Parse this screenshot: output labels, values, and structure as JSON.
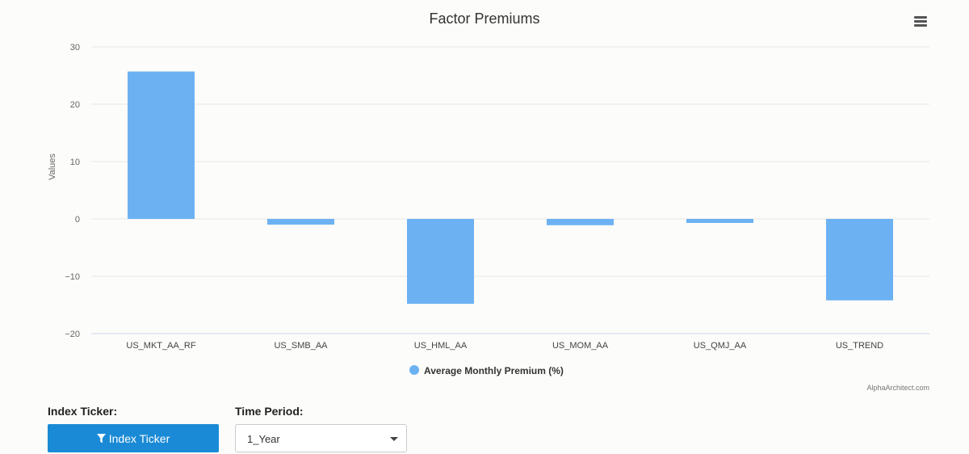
{
  "chart_data": {
    "type": "bar",
    "title": "Factor Premiums",
    "ylabel": "Values",
    "xlabel": "",
    "categories": [
      "US_MKT_AA_RF",
      "US_SMB_AA",
      "US_HML_AA",
      "US_MOM_AA",
      "US_QMJ_AA",
      "US_TREND"
    ],
    "series": [
      {
        "name": "Average Monthly Premium (%)",
        "values": [
          25.7,
          -1.0,
          -14.8,
          -1.1,
          -0.7,
          -14.2
        ],
        "color": "#6cb2f3"
      }
    ],
    "ylim": [
      -20,
      30
    ],
    "yticks": [
      30,
      20,
      10,
      0,
      -10,
      -20
    ],
    "ytick_labels": [
      "30",
      "20",
      "10",
      "0",
      "−10",
      "−20"
    ],
    "grid": true,
    "legend_position": "bottom-center",
    "credits": "AlphaArchitect.com"
  },
  "controls": {
    "index_ticker_label": "Index Ticker:",
    "index_ticker_button": "Index Ticker",
    "time_period_label": "Time Period:",
    "time_period_value": "1_Year"
  },
  "icons": {
    "menu": "hamburger-menu-icon",
    "filter": "filter-icon",
    "dropdown": "caret-down-icon"
  }
}
